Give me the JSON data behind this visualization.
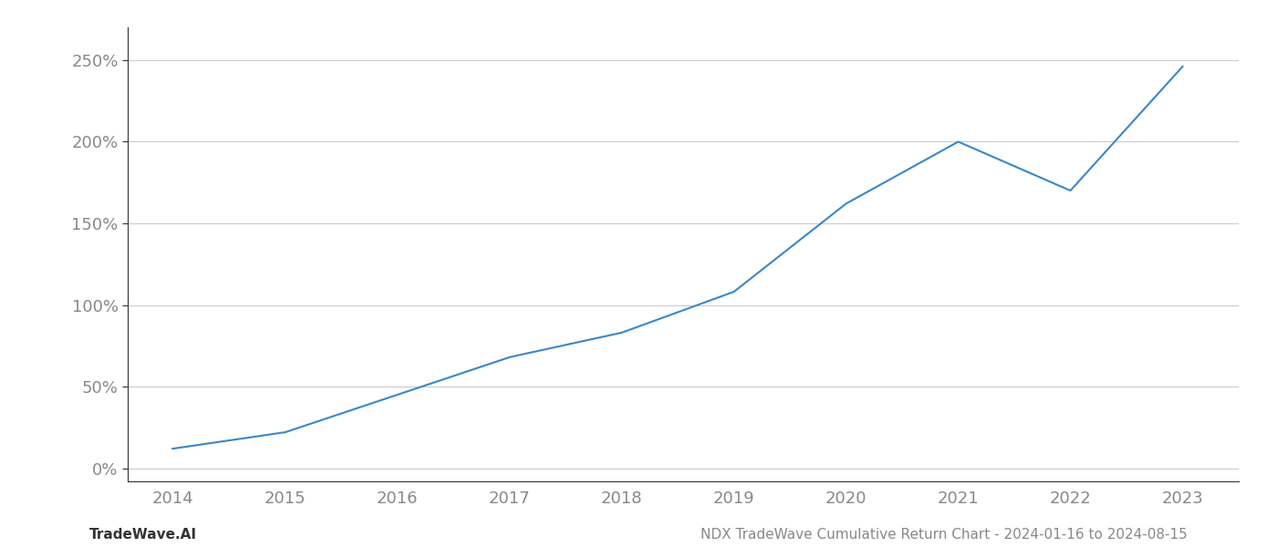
{
  "x_years": [
    2014,
    2015,
    2016,
    2017,
    2018,
    2019,
    2020,
    2021,
    2022,
    2023
  ],
  "y_values": [
    12,
    22,
    45,
    68,
    83,
    108,
    162,
    200,
    170,
    246
  ],
  "line_color": "#3a87c8",
  "line_width": 1.5,
  "background_color": "#ffffff",
  "grid_color": "#cccccc",
  "ylabel_ticks": [
    0,
    50,
    100,
    150,
    200,
    250
  ],
  "ylabel_labels": [
    "0%",
    "50%",
    "100%",
    "150%",
    "200%",
    "250%"
  ],
  "xlim": [
    2013.6,
    2023.5
  ],
  "ylim": [
    -8,
    270
  ],
  "footer_left": "TradeWave.AI",
  "footer_right": "NDX TradeWave Cumulative Return Chart - 2024-01-16 to 2024-08-15",
  "footer_color": "#888888",
  "tick_color": "#888888",
  "spine_color": "#333333",
  "axis_label_fontsize": 13,
  "footer_fontsize": 11
}
